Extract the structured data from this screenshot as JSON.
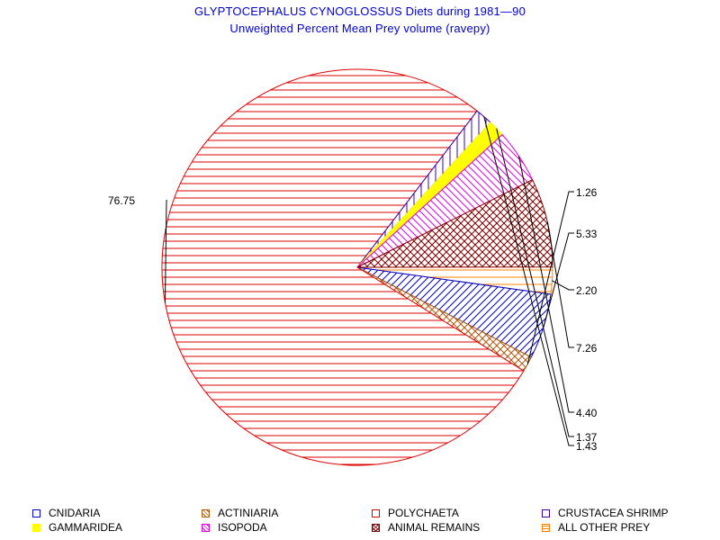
{
  "chart_data": {
    "type": "pie",
    "title": "GLYPTOCEPHALUS CYNOGLOSSUS Diets during 1981—90",
    "subtitle": "Unweighted Percent Mean Prey volume (ravepy)",
    "slices": [
      {
        "name": "ALL OTHER PREY",
        "value": 2.2,
        "label": "2.20",
        "color": "#ff8000",
        "pattern": "hlines"
      },
      {
        "name": "CNIDARIA",
        "value": 5.33,
        "label": "5.33",
        "color": "#0000cc",
        "pattern": "diag-up"
      },
      {
        "name": "ACTINIARIA",
        "value": 1.26,
        "label": "1.26",
        "color": "#b05a10",
        "pattern": "crosshatch"
      },
      {
        "name": "POLYCHAETA",
        "value": 76.75,
        "label": "76.75",
        "color": "#e00000",
        "pattern": "hlines"
      },
      {
        "name": "CRUSTACEA SHRIMP",
        "value": 1.43,
        "label": "1.43",
        "color": "#4000a0",
        "pattern": "vlines"
      },
      {
        "name": "GAMMARIDEA",
        "value": 1.37,
        "label": "1.37",
        "color": "#ffff00",
        "pattern": "solid"
      },
      {
        "name": "ISOPODA",
        "value": 4.4,
        "label": "4.40",
        "color": "#e000e0",
        "pattern": "diag-down"
      },
      {
        "name": "ANIMAL REMAINS",
        "value": 7.26,
        "label": "7.26",
        "color": "#800000",
        "pattern": "crosshatch"
      }
    ]
  },
  "legend": [
    {
      "name": "CNIDARIA",
      "color": "#0000cc",
      "pattern": "outline"
    },
    {
      "name": "ACTINIARIA",
      "color": "#b05a10",
      "pattern": "diag"
    },
    {
      "name": "POLYCHAETA",
      "color": "#e00000",
      "pattern": "outline"
    },
    {
      "name": "CRUSTACEA SHRIMP",
      "color": "#4000a0",
      "pattern": "outline"
    },
    {
      "name": "GAMMARIDEA",
      "color": "#ffff00",
      "pattern": "solid"
    },
    {
      "name": "ISOPODA",
      "color": "#e000e0",
      "pattern": "diag"
    },
    {
      "name": "ANIMAL REMAINS",
      "color": "#800000",
      "pattern": "cross"
    },
    {
      "name": "ALL OTHER PREY",
      "color": "#ff8000",
      "pattern": "hlines"
    }
  ]
}
